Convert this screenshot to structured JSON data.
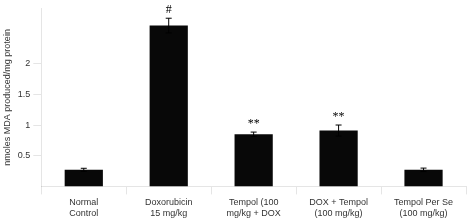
{
  "chart_data": {
    "type": "bar",
    "categories": [
      "Normal\nControl",
      "Doxorubicin\n15 mg/kg",
      "Tempol (100\nmg/kg + DOX",
      "DOX + Tempol\n(100 mg/kg)",
      "Tempol Per Se\n(100 mg/kg)"
    ],
    "values": [
      0.27,
      2.62,
      0.85,
      0.91,
      0.27
    ],
    "errors": [
      0.025,
      0.12,
      0.035,
      0.09,
      0.028
    ],
    "color": "#080808",
    "ylabel": "nmoles MDA produced/mg protein",
    "ylim": [
      0,
      2.9
    ],
    "yticks": [
      0.5,
      1,
      1.5,
      2
    ],
    "grid": false,
    "annotations": [
      {
        "x": "Doxorubicin\n15 mg/kg",
        "text": "#"
      },
      {
        "x": "Tempol (100\nmg/kg + DOX",
        "text": "**"
      },
      {
        "x": "DOX + Tempol\n(100 mg/kg)",
        "text": "**"
      }
    ]
  }
}
